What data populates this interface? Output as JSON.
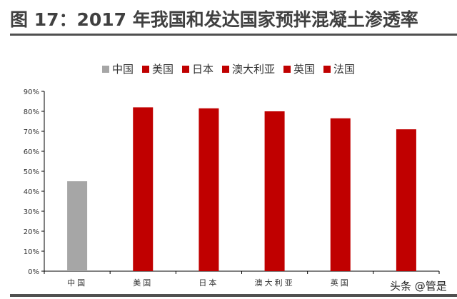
{
  "title": "图 17：2017 年我国和发达国家预拌混凝土渗透率",
  "watermark": "头条 @管是",
  "chart_data": {
    "type": "bar",
    "title": "",
    "xlabel": "",
    "ylabel": "",
    "categories": [
      "中国",
      "美国",
      "日本",
      "澳大利亚",
      "英国",
      "法国"
    ],
    "values": [
      45,
      82,
      81.5,
      80,
      76.5,
      71
    ],
    "unit": "%",
    "colors": [
      "#a6a6a6",
      "#c00000",
      "#c00000",
      "#c00000",
      "#c00000",
      "#c00000"
    ],
    "ylim": [
      0,
      90
    ],
    "yticks": [
      "0%",
      "10%",
      "20%",
      "30%",
      "40%",
      "50%",
      "60%",
      "70%",
      "80%",
      "90%"
    ],
    "grid": false,
    "legend": {
      "placement": "top",
      "entries": [
        "中国",
        "美国",
        "日本",
        "澳大利亚",
        "英国",
        "法国"
      ]
    }
  }
}
